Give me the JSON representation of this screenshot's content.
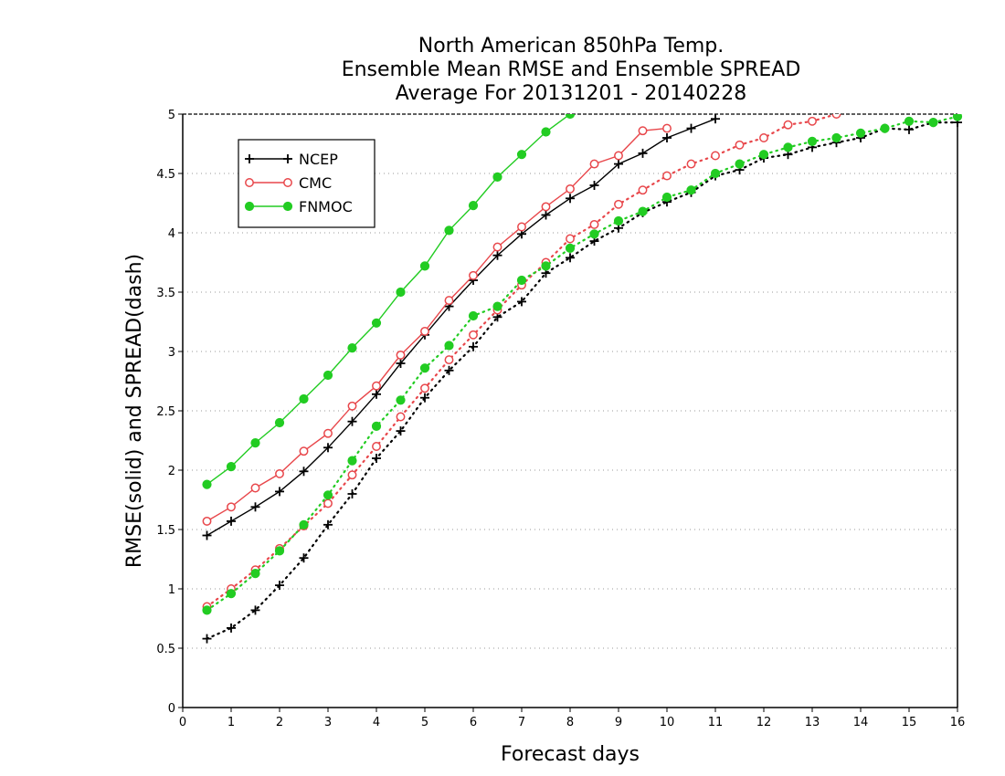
{
  "chart_data": {
    "type": "line",
    "title": [
      "North American 850hPa Temp.",
      "Ensemble Mean RMSE and Ensemble SPREAD",
      "Average For 20131201 - 20140228"
    ],
    "xlabel": "Forecast days",
    "ylabel": "RMSE(solid) and SPREAD(dash)",
    "xlim": [
      0,
      16
    ],
    "ylim": [
      0,
      5
    ],
    "xticks": [
      "0",
      "1",
      "2",
      "3",
      "4",
      "5",
      "6",
      "7",
      "8",
      "9",
      "10",
      "11",
      "12",
      "13",
      "14",
      "15",
      "16"
    ],
    "yticks": [
      "0",
      "0.5",
      "1",
      "1.5",
      "2",
      "2.5",
      "3",
      "3.5",
      "4",
      "4.5",
      "5"
    ],
    "grid": "horizontal dotted",
    "legend_position": "top-left",
    "legend": [
      {
        "name": "NCEP",
        "color": "#000000",
        "marker": "plus"
      },
      {
        "name": "CMC",
        "color": "#e8474b",
        "marker": "open-circle"
      },
      {
        "name": "FNMOC",
        "color": "#22cc22",
        "marker": "filled-circle"
      }
    ],
    "series": [
      {
        "name": "NCEP",
        "metric": "RMSE",
        "style": "solid",
        "color": "#000000",
        "marker": "plus",
        "x": [
          0.5,
          1,
          1.5,
          2,
          2.5,
          3,
          3.5,
          4,
          4.5,
          5,
          5.5,
          6,
          6.5,
          7,
          7.5,
          8,
          8.5,
          9,
          9.5,
          10,
          10.5,
          11
        ],
        "y": [
          1.45,
          1.57,
          1.69,
          1.82,
          1.99,
          2.19,
          2.41,
          2.64,
          2.9,
          3.14,
          3.38,
          3.6,
          3.81,
          3.99,
          4.15,
          4.29,
          4.4,
          4.58,
          4.67,
          4.8,
          4.88,
          4.96
        ]
      },
      {
        "name": "CMC",
        "metric": "RMSE",
        "style": "solid",
        "color": "#e8474b",
        "marker": "open-circle",
        "x": [
          0.5,
          1,
          1.5,
          2,
          2.5,
          3,
          3.5,
          4,
          4.5,
          5,
          5.5,
          6,
          6.5,
          7,
          7.5,
          8,
          8.5,
          9,
          9.5,
          10
        ],
        "y": [
          1.57,
          1.69,
          1.85,
          1.97,
          2.16,
          2.31,
          2.54,
          2.71,
          2.97,
          3.17,
          3.43,
          3.64,
          3.88,
          4.05,
          4.22,
          4.37,
          4.58,
          4.65,
          4.86,
          4.88
        ]
      },
      {
        "name": "FNMOC",
        "metric": "RMSE",
        "style": "solid",
        "color": "#22cc22",
        "marker": "filled-circle",
        "x": [
          0.5,
          1,
          1.5,
          2,
          2.5,
          3,
          3.5,
          4,
          4.5,
          5,
          5.5,
          6,
          6.5,
          7,
          7.5,
          8
        ],
        "y": [
          1.88,
          2.03,
          2.23,
          2.4,
          2.6,
          2.8,
          3.03,
          3.24,
          3.5,
          3.72,
          4.02,
          4.23,
          4.47,
          4.66,
          4.85,
          5.0
        ]
      },
      {
        "name": "NCEP",
        "metric": "SPREAD",
        "style": "dash",
        "color": "#000000",
        "marker": "plus",
        "x": [
          0.5,
          1,
          1.5,
          2,
          2.5,
          3,
          3.5,
          4,
          4.5,
          5,
          5.5,
          6,
          6.5,
          7,
          7.5,
          8,
          8.5,
          9,
          9.5,
          10,
          10.5,
          11,
          11.5,
          12,
          12.5,
          13,
          13.5,
          14,
          14.5,
          15,
          15.5,
          16
        ],
        "y": [
          0.58,
          0.67,
          0.82,
          1.03,
          1.26,
          1.54,
          1.8,
          2.1,
          2.33,
          2.61,
          2.84,
          3.04,
          3.29,
          3.42,
          3.66,
          3.79,
          3.93,
          4.04,
          4.17,
          4.26,
          4.34,
          4.48,
          4.53,
          4.63,
          4.66,
          4.72,
          4.76,
          4.8,
          4.88,
          4.87,
          4.93,
          4.93
        ]
      },
      {
        "name": "CMC",
        "metric": "SPREAD",
        "style": "dash",
        "color": "#e8474b",
        "marker": "open-circle",
        "x": [
          0.5,
          1,
          1.5,
          2,
          2.5,
          3,
          3.5,
          4,
          4.5,
          5,
          5.5,
          6,
          6.5,
          7,
          7.5,
          8,
          8.5,
          9,
          9.5,
          10,
          10.5,
          11,
          11.5,
          12,
          12.5,
          13,
          13.5
        ],
        "y": [
          0.85,
          1.0,
          1.16,
          1.34,
          1.53,
          1.72,
          1.96,
          2.2,
          2.45,
          2.69,
          2.93,
          3.14,
          3.35,
          3.56,
          3.75,
          3.95,
          4.07,
          4.24,
          4.36,
          4.48,
          4.58,
          4.65,
          4.74,
          4.8,
          4.91,
          4.94,
          5.0
        ]
      },
      {
        "name": "FNMOC",
        "metric": "SPREAD",
        "style": "dash",
        "color": "#22cc22",
        "marker": "filled-circle",
        "x": [
          0.5,
          1,
          1.5,
          2,
          2.5,
          3,
          3.5,
          4,
          4.5,
          5,
          5.5,
          6,
          6.5,
          7,
          7.5,
          8,
          8.5,
          9,
          9.5,
          10,
          10.5,
          11,
          11.5,
          12,
          12.5,
          13,
          13.5,
          14,
          14.5,
          15,
          15.5,
          16
        ],
        "y": [
          0.82,
          0.96,
          1.13,
          1.32,
          1.54,
          1.79,
          2.08,
          2.37,
          2.59,
          2.86,
          3.05,
          3.3,
          3.38,
          3.6,
          3.72,
          3.87,
          3.99,
          4.1,
          4.18,
          4.3,
          4.36,
          4.5,
          4.58,
          4.66,
          4.72,
          4.77,
          4.8,
          4.84,
          4.88,
          4.94,
          4.93,
          4.98
        ]
      }
    ]
  }
}
